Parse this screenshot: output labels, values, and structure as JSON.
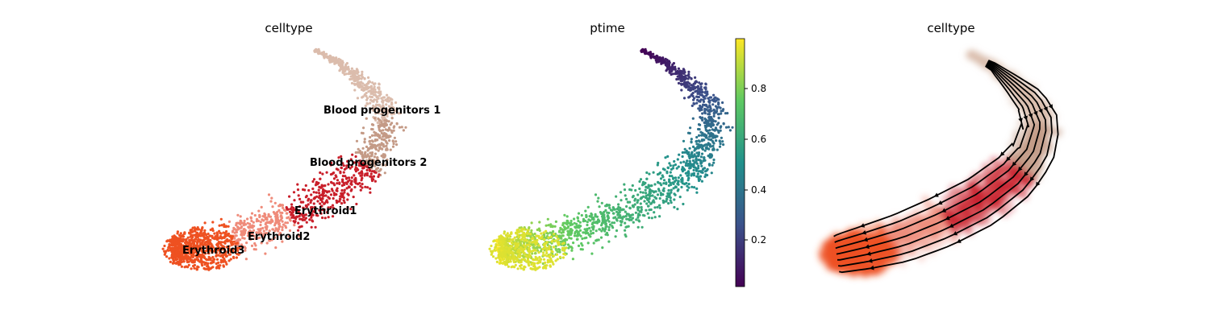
{
  "chart_data": [
    {
      "type": "scatter",
      "title": "celltype",
      "color_by": "category",
      "legend_placement": "on-data",
      "categories": [
        {
          "name": "Blood progenitors 1",
          "color": "#dbbcac"
        },
        {
          "name": "Blood progenitors 2",
          "color": "#c49a86"
        },
        {
          "name": "Erythroid1",
          "color": "#c91f2a"
        },
        {
          "name": "Erythroid2",
          "color": "#ef8b7a"
        },
        {
          "name": "Erythroid3",
          "color": "#ee5121"
        }
      ]
    },
    {
      "type": "scatter",
      "title": "ptime",
      "color_by": "continuous",
      "colormap": "viridis",
      "colorbar_ticks": [
        "0.2",
        "0.4",
        "0.6",
        "0.8"
      ],
      "colorbar_range": [
        0.0,
        1.0
      ]
    },
    {
      "type": "scatter",
      "title": "celltype",
      "overlay": "velocity-streamlines",
      "stream_color": "#000000"
    }
  ]
}
